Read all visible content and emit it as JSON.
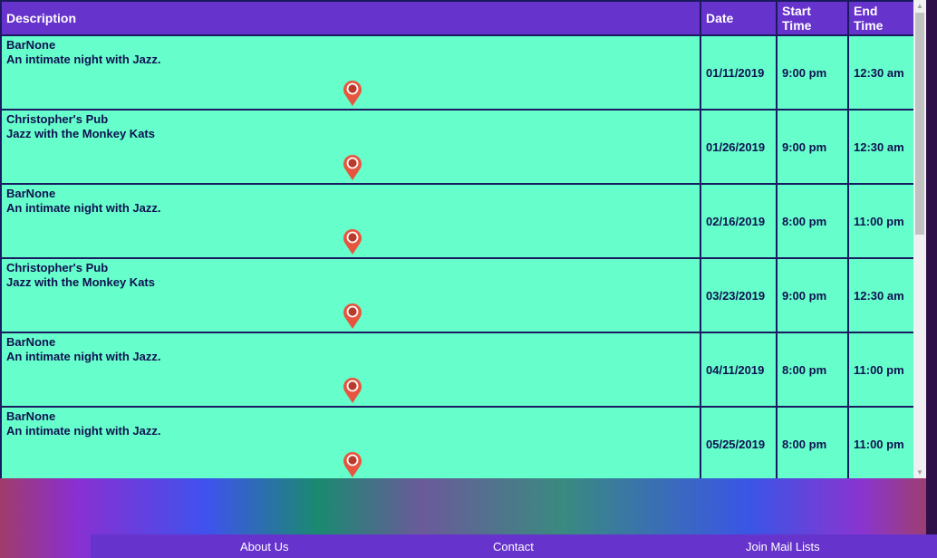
{
  "table": {
    "headers": {
      "description": "Description",
      "date": "Date",
      "start": "Start Time",
      "end": "End Time"
    },
    "rows": [
      {
        "venue": "BarNone",
        "event": "An intimate night with Jazz.",
        "date": "01/11/2019",
        "start": "9:00 pm",
        "end": "12:30 am",
        "icon": "map-pin-icon"
      },
      {
        "venue": "Christopher's Pub",
        "event": "Jazz with the Monkey Kats",
        "date": "01/26/2019",
        "start": "9:00 pm",
        "end": "12:30 am",
        "icon": "map-pin-icon"
      },
      {
        "venue": "BarNone",
        "event": "An intimate night with Jazz.",
        "date": "02/16/2019",
        "start": "8:00 pm",
        "end": "11:00 pm",
        "icon": "map-pin-icon"
      },
      {
        "venue": "Christopher's Pub",
        "event": "Jazz with the Monkey Kats",
        "date": "03/23/2019",
        "start": "9:00 pm",
        "end": "12:30 am",
        "icon": "map-pin-icon"
      },
      {
        "venue": "BarNone",
        "event": "An intimate night with Jazz.",
        "date": "04/11/2019",
        "start": "8:00 pm",
        "end": "11:00 pm",
        "icon": "map-pin-icon"
      },
      {
        "venue": "BarNone",
        "event": "An intimate night with Jazz.",
        "date": "05/25/2019",
        "start": "8:00 pm",
        "end": "11:00 pm",
        "icon": "map-pin-icon"
      }
    ]
  },
  "footer": {
    "links": [
      "About Us",
      "Contact",
      "Join Mail Lists"
    ]
  },
  "colors": {
    "header": "#6633cc",
    "row": "#66ffcc",
    "text": "#101050",
    "pin": "#e8553f"
  }
}
